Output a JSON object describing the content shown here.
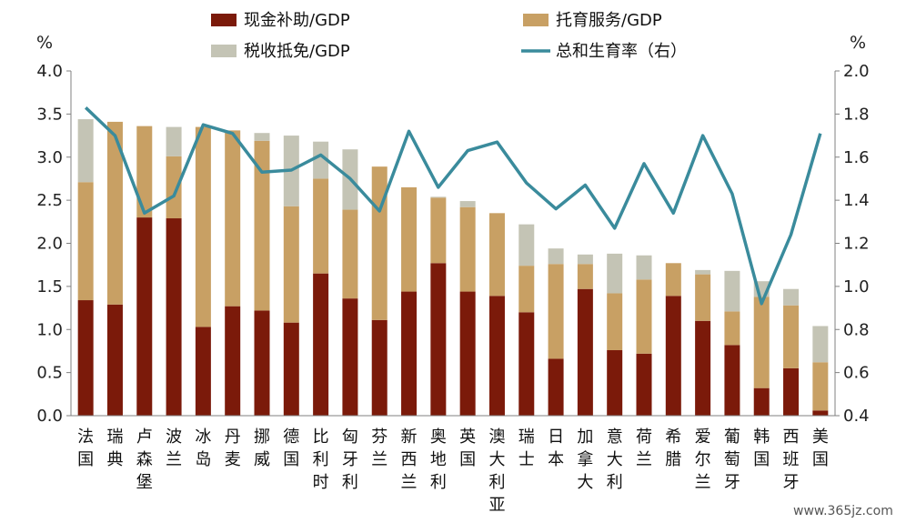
{
  "chart_data": {
    "type": "bar",
    "stacked": true,
    "categories": [
      "法国",
      "瑞典",
      "卢森堡",
      "波兰",
      "冰岛",
      "丹麦",
      "挪威",
      "德国",
      "比利时",
      "匈牙利",
      "芬兰",
      "新西兰",
      "奥地利",
      "英国",
      "澳大利亚",
      "瑞士",
      "日本",
      "加拿大",
      "意大利",
      "荷兰",
      "希腊",
      "爱尔兰",
      "葡萄牙",
      "韩国",
      "西班牙",
      "美国"
    ],
    "series": [
      {
        "name": "现金补助/GDP",
        "axis": "left",
        "color": "#7B1A0A",
        "values": [
          1.34,
          1.29,
          2.3,
          2.29,
          1.03,
          1.27,
          1.22,
          1.08,
          1.65,
          1.36,
          1.11,
          1.44,
          1.77,
          1.44,
          1.39,
          1.2,
          0.66,
          1.47,
          0.76,
          0.72,
          1.39,
          1.1,
          0.82,
          0.32,
          0.55,
          0.06
        ]
      },
      {
        "name": "托育服务/GDP",
        "axis": "left",
        "color": "#C8A064",
        "values": [
          1.37,
          2.12,
          1.06,
          0.72,
          2.32,
          2.04,
          1.97,
          1.35,
          1.1,
          1.03,
          1.78,
          1.21,
          0.76,
          0.98,
          0.96,
          0.54,
          1.1,
          0.29,
          0.66,
          0.86,
          0.38,
          0.54,
          0.39,
          1.06,
          0.73,
          0.56
        ]
      },
      {
        "name": "税收抵免/GDP",
        "axis": "left",
        "color": "#C4C4B5",
        "values": [
          0.73,
          0,
          0,
          0.34,
          0,
          0,
          0.09,
          0.82,
          0.43,
          0.7,
          0,
          0,
          0.01,
          0.07,
          0,
          0.48,
          0.18,
          0.11,
          0.46,
          0.28,
          0,
          0.05,
          0.47,
          0.18,
          0.19,
          0.42
        ]
      },
      {
        "name": "总和生育率（右）",
        "axis": "right",
        "type": "line",
        "color": "#3A8B9C",
        "values": [
          1.83,
          1.7,
          1.34,
          1.42,
          1.75,
          1.71,
          1.53,
          1.54,
          1.61,
          1.5,
          1.35,
          1.72,
          1.46,
          1.63,
          1.67,
          1.48,
          1.36,
          1.47,
          1.27,
          1.57,
          1.34,
          1.7,
          1.43,
          0.92,
          1.24,
          1.71
        ]
      }
    ],
    "y_left": {
      "unit": "%",
      "min": 0.0,
      "max": 4.0,
      "ticks": [
        "0.0",
        "0.5",
        "1.0",
        "1.5",
        "2.0",
        "2.5",
        "3.0",
        "3.5",
        "4.0"
      ]
    },
    "y_right": {
      "unit": "%",
      "min": 0.4,
      "max": 2.0,
      "ticks": [
        "0.4",
        "0.6",
        "0.8",
        "1.0",
        "1.2",
        "1.4",
        "1.6",
        "1.8",
        "2.0"
      ]
    },
    "legend": "top",
    "grid": false
  },
  "watermark": "www.365jz.com"
}
